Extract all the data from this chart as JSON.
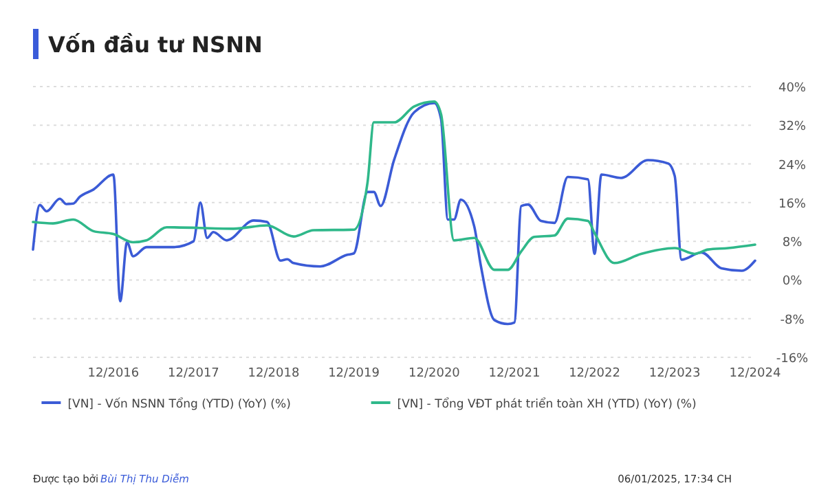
{
  "chart_data": {
    "type": "line",
    "title": "Vốn đầu tư NSNN",
    "xlim": [
      "2015-12",
      "2024-12"
    ],
    "xticks": [
      {
        "value": "2016-12",
        "label": "12/2016"
      },
      {
        "value": "2017-12",
        "label": "12/2017"
      },
      {
        "value": "2018-12",
        "label": "12/2018"
      },
      {
        "value": "2019-12",
        "label": "12/2019"
      },
      {
        "value": "2020-12",
        "label": "12/2020"
      },
      {
        "value": "2021-12",
        "label": "12/2021"
      },
      {
        "value": "2022-12",
        "label": "12/2022"
      },
      {
        "value": "2023-12",
        "label": "12/2023"
      },
      {
        "value": "2024-12",
        "label": "12/2024"
      }
    ],
    "ylim": [
      -16,
      40
    ],
    "yticks": [
      {
        "value": -16,
        "label": "-16%"
      },
      {
        "value": -8,
        "label": "-8%"
      },
      {
        "value": 0,
        "label": "0%"
      },
      {
        "value": 8,
        "label": "8%"
      },
      {
        "value": 16,
        "label": "16%"
      },
      {
        "value": 24,
        "label": "24%"
      },
      {
        "value": 32,
        "label": "32%"
      },
      {
        "value": 40,
        "label": "40%"
      }
    ],
    "grid": "y",
    "legend": "bottom",
    "marker": "none",
    "line_style": "solid",
    "series": [
      {
        "name": "[VN] - Vốn NSNN Tổng (YTD) (YoY) (%)",
        "color": "#3b5bd6",
        "x": [
          "2015-12",
          "2016-01",
          "2016-02",
          "2016-04",
          "2016-05",
          "2016-06",
          "2016-07",
          "2016-09",
          "2016-12",
          "2017-01",
          "2017-02",
          "2017-03",
          "2017-05",
          "2017-09",
          "2017-12",
          "2018-01",
          "2018-02",
          "2018-03",
          "2018-05",
          "2018-09",
          "2018-11",
          "2019-01",
          "2019-02",
          "2019-03",
          "2019-07",
          "2019-11",
          "2019-12",
          "2020-02",
          "2020-03",
          "2020-04",
          "2020-06",
          "2020-09",
          "2020-12",
          "2021-01",
          "2021-02",
          "2021-03",
          "2021-04",
          "2021-06",
          "2021-07",
          "2021-09",
          "2021-11",
          "2021-12",
          "2022-01",
          "2022-02",
          "2022-04",
          "2022-06",
          "2022-08",
          "2022-11",
          "2022-12",
          "2023-01",
          "2023-04",
          "2023-08",
          "2023-11",
          "2023-12",
          "2024-01",
          "2024-04",
          "2024-07",
          "2024-10",
          "2024-12"
        ],
        "values": [
          6.3,
          15.5,
          14.2,
          16.8,
          15.7,
          15.8,
          17.2,
          18.7,
          21.8,
          -4.4,
          7.8,
          4.9,
          6.8,
          6.8,
          8.0,
          16.0,
          8.7,
          9.9,
          8.2,
          12.3,
          12.0,
          4.0,
          4.3,
          3.5,
          2.8,
          5.2,
          5.5,
          18.2,
          18.2,
          15.3,
          24.8,
          34.7,
          36.6,
          33.3,
          12.5,
          12.5,
          16.6,
          11.1,
          3.0,
          -8.3,
          -9.1,
          -8.8,
          15.3,
          15.6,
          12.2,
          11.8,
          21.3,
          20.8,
          5.4,
          21.8,
          21.1,
          24.8,
          24.1,
          21.5,
          4.2,
          5.7,
          2.4,
          1.9,
          4.0
        ]
      },
      {
        "name": "[VN] - Tổng VĐT phát triển toàn XH (YTD) (YoY) (%)",
        "color": "#2fb88a",
        "x": [
          "2015-12",
          "2016-03",
          "2016-06",
          "2016-09",
          "2016-12",
          "2017-03",
          "2017-05",
          "2017-08",
          "2018-06",
          "2018-11",
          "2019-03",
          "2019-06",
          "2019-12",
          "2020-02",
          "2020-03",
          "2020-06",
          "2020-09",
          "2020-12",
          "2021-01",
          "2021-03",
          "2021-06",
          "2021-09",
          "2021-11",
          "2022-01",
          "2022-03",
          "2022-06",
          "2022-08",
          "2022-11",
          "2022-12",
          "2023-03",
          "2023-07",
          "2023-12",
          "2024-03",
          "2024-05",
          "2024-08",
          "2024-12"
        ],
        "values": [
          12.0,
          11.7,
          12.5,
          10.1,
          9.5,
          7.8,
          8.2,
          10.9,
          10.6,
          11.3,
          9.0,
          10.3,
          10.4,
          20.1,
          32.6,
          32.6,
          35.9,
          36.9,
          34.3,
          8.2,
          8.7,
          2.1,
          2.1,
          5.9,
          8.9,
          9.2,
          12.7,
          12.2,
          9.7,
          3.5,
          5.4,
          6.6,
          5.4,
          6.3,
          6.6,
          7.3
        ]
      }
    ],
    "annotations": [
      "Được tạo bởi",
      "Bùi Thị Thu Diễm",
      "06/01/2025, 17:34 CH"
    ]
  }
}
